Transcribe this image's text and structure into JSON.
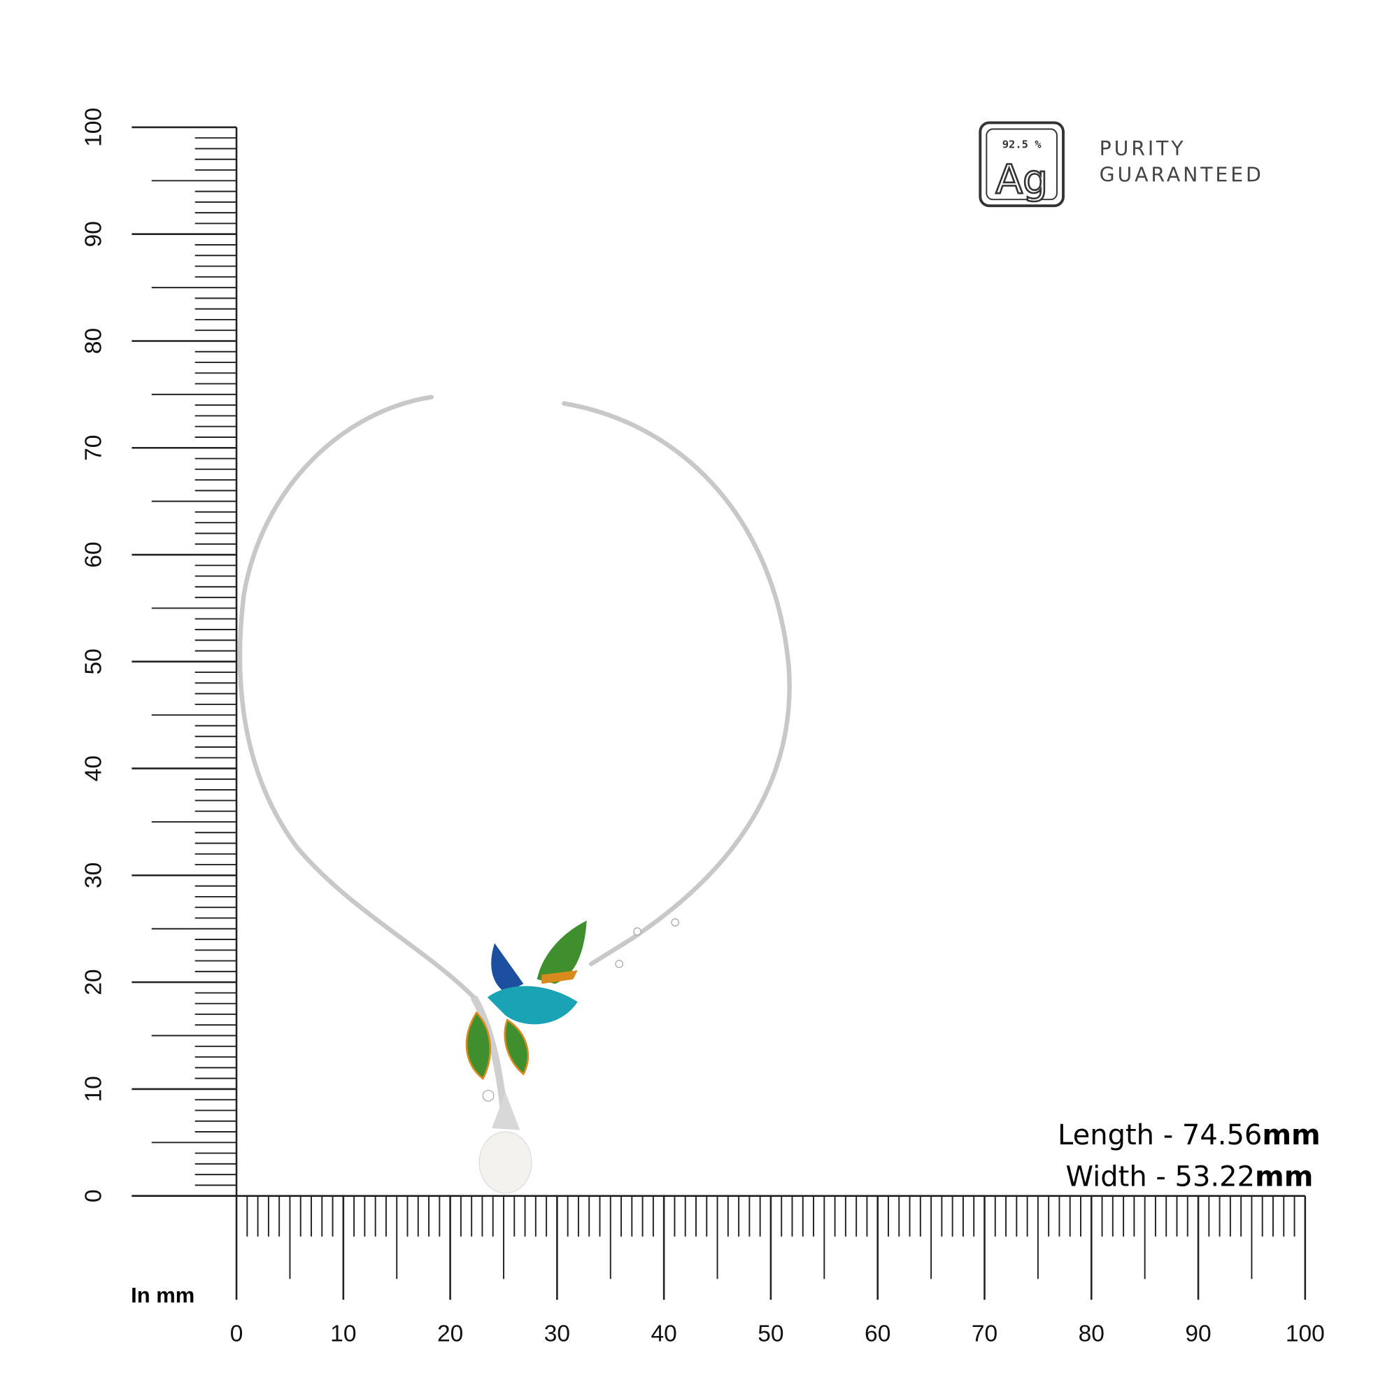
{
  "ruler": {
    "unit_label": "In mm",
    "x_ticks": [
      "0",
      "10",
      "20",
      "30",
      "40",
      "50",
      "60",
      "70",
      "80",
      "90",
      "100"
    ],
    "y_ticks": [
      "0",
      "10",
      "20",
      "30",
      "40",
      "50",
      "60",
      "70",
      "80",
      "90",
      "100"
    ],
    "range_mm": [
      0,
      100
    ]
  },
  "badge": {
    "purity": "92.5 %",
    "symbol": "Ag",
    "line1": "PURITY",
    "line2": "GUARANTEED"
  },
  "measurements": {
    "length_label": "Length - 74.56",
    "length_unit": "mm",
    "width_label": "Width - 53.22",
    "width_unit": "mm"
  },
  "colors": {
    "silver": "#c8c8c8",
    "bird_teal": "#1aa3b5",
    "bird_blue": "#1c4fa0",
    "wing_green": "#3f8f2f",
    "accent_orange": "#d98a1c",
    "pearl": "#f4f2ee"
  }
}
